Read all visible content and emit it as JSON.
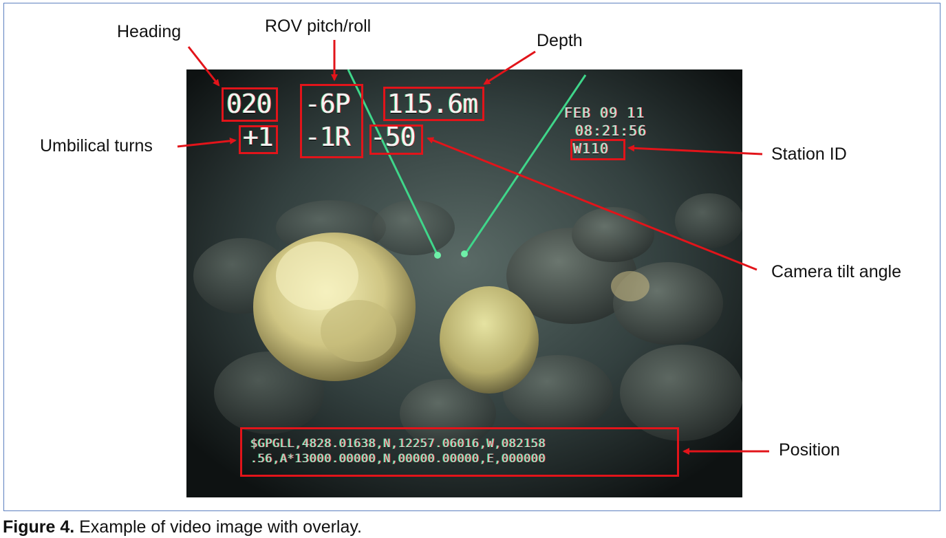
{
  "overlay": {
    "heading": "020",
    "pitch": "-6P",
    "depth": "115.6m",
    "umbilical_turns": "+1",
    "roll": "-1R",
    "camera_tilt": "-50",
    "date": "FEB 09 11",
    "time": "08:21:56",
    "station_id": "W110",
    "position_line1": "$GPGLL,4828.01638,N,12257.06016,W,082158",
    "position_line2": ".56,A*13000.00000,N,00000.00000,E,000000"
  },
  "labels": {
    "heading": "Heading",
    "pitch_roll": "ROV pitch/roll",
    "depth": "Depth",
    "umbilical": "Umbilical turns",
    "station": "Station ID",
    "tilt": "Camera tilt angle",
    "position": "Position"
  },
  "caption": {
    "bold": "Figure 4.",
    "text": " Example of video image with overlay."
  },
  "colors": {
    "annotation": "#e2141a",
    "border": "#5b7fbf",
    "laser": "#3fd68a"
  }
}
